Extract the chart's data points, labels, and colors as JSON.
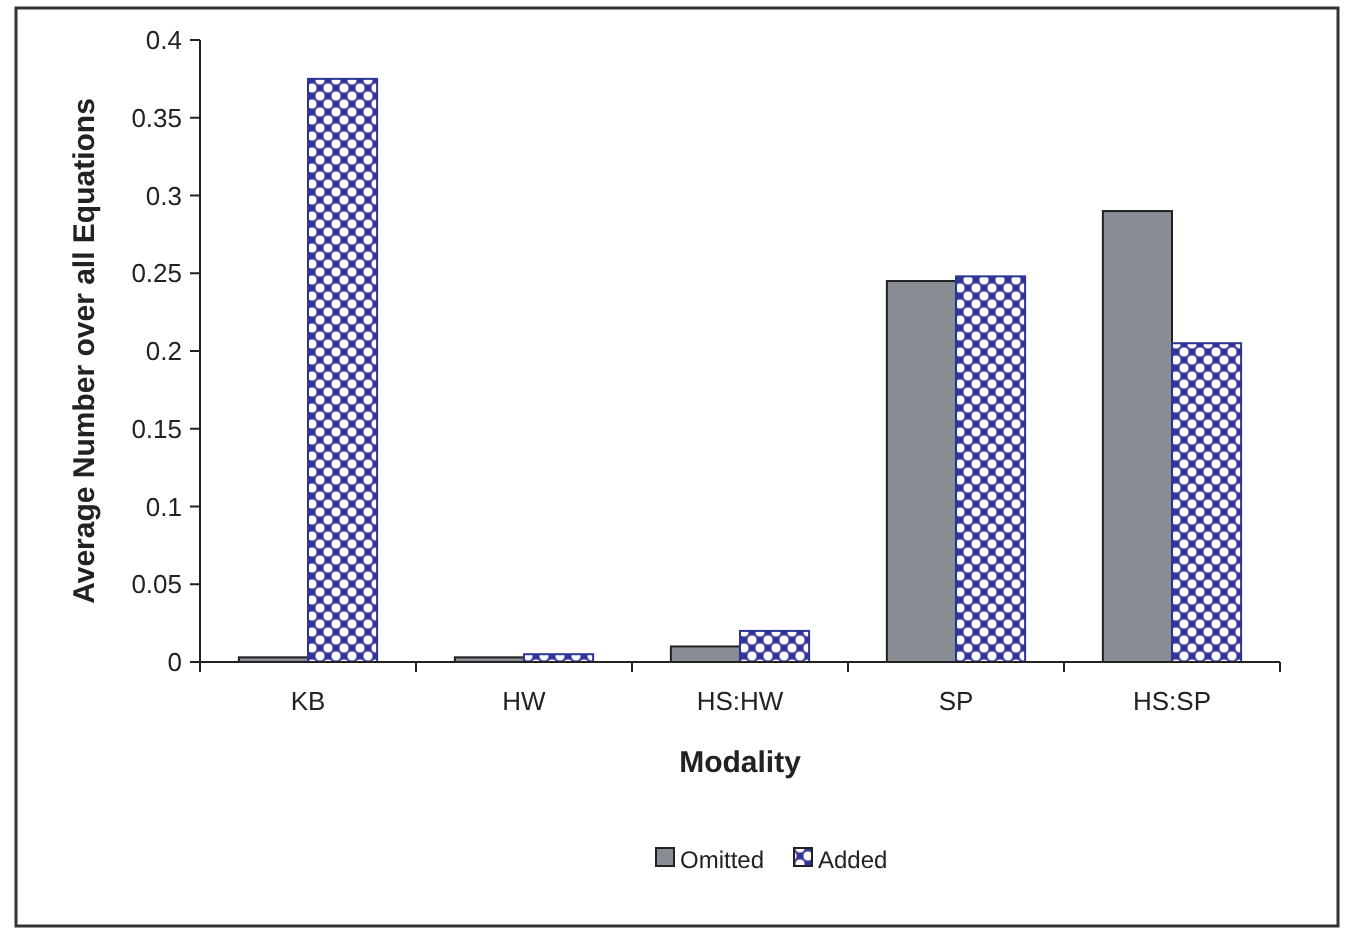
{
  "chart_data": {
    "type": "bar",
    "xlabel": "Modality",
    "ylabel": "Average Number over all Equations",
    "categories": [
      "KB",
      "HW",
      "HS:HW",
      "SP",
      "HS:SP"
    ],
    "series": [
      {
        "name": "Omitted",
        "color": "#878d93",
        "values": [
          0.003,
          0.003,
          0.01,
          0.245,
          0.29
        ]
      },
      {
        "name": "Added",
        "color": "#2b3596",
        "values": [
          0.375,
          0.005,
          0.02,
          0.248,
          0.205
        ]
      }
    ],
    "ylim": [
      0,
      0.4
    ],
    "yticks": [
      0,
      0.05,
      0.1,
      0.15,
      0.2,
      0.25,
      0.3,
      0.35,
      0.4
    ],
    "grid": false,
    "legend": "bottom"
  }
}
